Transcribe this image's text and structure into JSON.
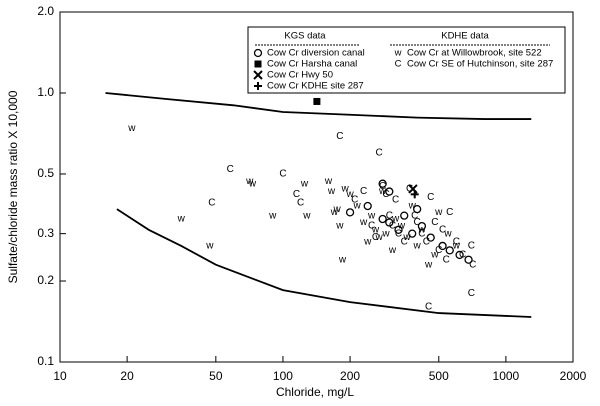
{
  "chart_data": {
    "type": "scatter",
    "x_label": "Chloride, mg/L",
    "y_label": "Sulfate/chloride mass ratio X 10,000",
    "xscale": "log",
    "yscale": "log",
    "xlim": [
      10,
      2000
    ],
    "ylim": [
      0.1,
      2.0
    ],
    "xticks": [
      10,
      20,
      50,
      100,
      200,
      500,
      1000,
      2000
    ],
    "yticks": [
      0.1,
      0.2,
      0.3,
      0.5,
      {
        "value": 1.0,
        "label": "1.0"
      },
      {
        "value": 2.0,
        "label": "2.0"
      }
    ],
    "legend_groups": [
      "KGS data",
      "KDHE data"
    ],
    "curves": [
      {
        "color": "#000000",
        "x": [
          16,
          30,
          60,
          100,
          200,
          400,
          800,
          1300
        ],
        "values": [
          1.0,
          0.95,
          0.9,
          0.85,
          0.83,
          0.81,
          0.8,
          0.8
        ]
      },
      {
        "color": "#000000",
        "x": [
          18,
          25,
          35,
          50,
          100,
          200,
          500,
          1300
        ],
        "values": [
          0.37,
          0.31,
          0.27,
          0.23,
          0.185,
          0.167,
          0.152,
          0.147
        ]
      }
    ],
    "series": [
      {
        "name": "Cow Cr diversion canal",
        "group": 0,
        "marker": "circle",
        "color": "#000000",
        "x": [
          200,
          240,
          280,
          300,
          330,
          350,
          380,
          420,
          460,
          520,
          560,
          620,
          680,
          300,
          280,
          400
        ],
        "values": [
          0.36,
          0.38,
          0.34,
          0.33,
          0.31,
          0.35,
          0.3,
          0.32,
          0.29,
          0.27,
          0.26,
          0.25,
          0.24,
          0.43,
          0.46,
          0.37
        ]
      },
      {
        "name": "Cow Cr Harsha canal",
        "group": 0,
        "marker": "square",
        "color": "#000000",
        "x": [
          142
        ],
        "values": [
          0.93
        ]
      },
      {
        "name": "Cow Cr Hwy 50",
        "group": 0,
        "marker": "x",
        "color": "#000000",
        "x": [
          383
        ],
        "values": [
          0.44
        ]
      },
      {
        "name": "Cow Cr KDHE site 287",
        "group": 0,
        "marker": "plus",
        "color": "#000000",
        "x": [
          390
        ],
        "values": [
          0.42
        ]
      },
      {
        "name": "Cow Cr at Willowbrook, site 522",
        "group": 1,
        "marker": "w",
        "color": "#000000",
        "x": [
          21,
          35,
          47,
          71,
          73,
          90,
          125,
          128,
          160,
          165,
          170,
          175,
          180,
          190,
          200,
          215,
          230,
          240,
          250,
          260,
          270,
          280,
          290,
          310,
          320,
          340,
          360,
          380,
          400,
          420,
          450,
          480,
          500,
          550,
          600,
          185
        ],
        "values": [
          0.74,
          0.34,
          0.27,
          0.47,
          0.46,
          0.35,
          0.46,
          0.35,
          0.47,
          0.43,
          0.36,
          0.37,
          0.32,
          0.44,
          0.42,
          0.38,
          0.33,
          0.28,
          0.35,
          0.31,
          0.29,
          0.43,
          0.3,
          0.26,
          0.34,
          0.32,
          0.29,
          0.38,
          0.27,
          0.31,
          0.23,
          0.25,
          0.36,
          0.3,
          0.27,
          0.24
        ]
      },
      {
        "name": "Cow Cr SE of Hutchinson, site 287",
        "group": 1,
        "marker": "C",
        "color": "#000000",
        "x": [
          48,
          58,
          100,
          115,
          120,
          180,
          210,
          230,
          270,
          280,
          290,
          300,
          310,
          320,
          330,
          350,
          370,
          390,
          400,
          420,
          440,
          460,
          480,
          500,
          520,
          540,
          560,
          600,
          640,
          700,
          710,
          700,
          450,
          250,
          260
        ],
        "values": [
          0.39,
          0.52,
          0.5,
          0.42,
          0.39,
          0.69,
          0.4,
          0.43,
          0.6,
          0.45,
          0.42,
          0.35,
          0.32,
          0.4,
          0.3,
          0.28,
          0.44,
          0.35,
          0.33,
          0.3,
          0.28,
          0.41,
          0.33,
          0.26,
          0.31,
          0.24,
          0.36,
          0.28,
          0.25,
          0.27,
          0.23,
          0.18,
          0.16,
          0.32,
          0.29
        ]
      }
    ]
  }
}
